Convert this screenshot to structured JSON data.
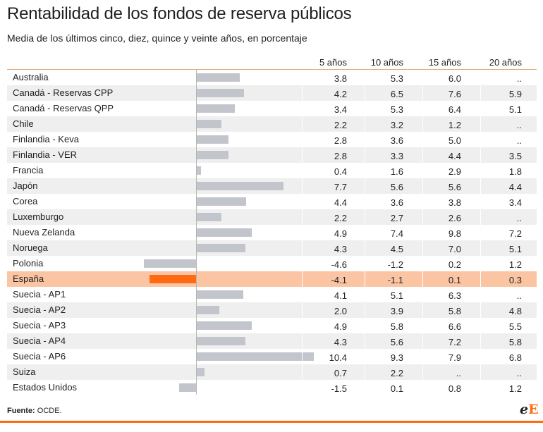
{
  "header": {
    "title": "Rentabilidad de los fondos de reserva públicos",
    "subtitle": "Media de los últimos cinco, diez, quince y veinte años, en porcentaje"
  },
  "footer": {
    "source_label": "Fuente:",
    "source_value": "OCDE.",
    "logo_e1": "e",
    "logo_e2": "E"
  },
  "colors": {
    "bar": "#c2c6cc",
    "highlight_bar": "#ff6a13",
    "highlight_row": "#fbc5a3",
    "rule": "#e0a86a"
  },
  "chart_data": {
    "type": "table",
    "columns": [
      "5 años",
      "10 años",
      "15 años",
      "20 años"
    ],
    "bar_series": "5 años",
    "highlight": "España",
    "rows": [
      {
        "name": "Australia",
        "values": [
          "3.8",
          "5.3",
          "6.0",
          ".."
        ]
      },
      {
        "name": "Canadá - Reservas CPP",
        "values": [
          "4.2",
          "6.5",
          "7.6",
          "5.9"
        ]
      },
      {
        "name": "Canadá - Reservas QPP",
        "values": [
          "3.4",
          "5.3",
          "6.4",
          "5.1"
        ]
      },
      {
        "name": "Chile",
        "values": [
          "2.2",
          "3.2",
          "1.2",
          ".."
        ]
      },
      {
        "name": "Finlandia - Keva",
        "values": [
          "2.8",
          "3.6",
          "5.0",
          ".."
        ]
      },
      {
        "name": "Finlandia - VER",
        "values": [
          "2.8",
          "3.3",
          "4.4",
          "3.5"
        ]
      },
      {
        "name": "Francia",
        "values": [
          "0.4",
          "1.6",
          "2.9",
          "1.8"
        ]
      },
      {
        "name": "Japón",
        "values": [
          "7.7",
          "5.6",
          "5.6",
          "4.4"
        ]
      },
      {
        "name": "Corea",
        "values": [
          "4.4",
          "3.6",
          "3.8",
          "3.4"
        ]
      },
      {
        "name": "Luxemburgo",
        "values": [
          "2.2",
          "2.7",
          "2.6",
          ".."
        ]
      },
      {
        "name": "Nueva Zelanda",
        "values": [
          "4.9",
          "7.4",
          "9.8",
          "7.2"
        ]
      },
      {
        "name": "Noruega",
        "values": [
          "4.3",
          "4.5",
          "7.0",
          "5.1"
        ]
      },
      {
        "name": "Polonia",
        "values": [
          "-4.6",
          "-1.2",
          "0.2",
          "1.2"
        ]
      },
      {
        "name": "España",
        "values": [
          "-4.1",
          "-1.1",
          "0.1",
          "0.3"
        ]
      },
      {
        "name": "Suecia - AP1",
        "values": [
          "4.1",
          "5.1",
          "6.3",
          ".."
        ]
      },
      {
        "name": "Suecia - AP2",
        "values": [
          "2.0",
          "3.9",
          "5.8",
          "4.8"
        ]
      },
      {
        "name": "Suecia - AP3",
        "values": [
          "4.9",
          "5.8",
          "6.6",
          "5.5"
        ]
      },
      {
        "name": "Suecia - AP4",
        "values": [
          "4.3",
          "5.6",
          "7.2",
          "5.8"
        ]
      },
      {
        "name": "Suecia - AP6",
        "values": [
          "10.4",
          "9.3",
          "7.9",
          "6.8"
        ]
      },
      {
        "name": "Suiza",
        "values": [
          "0.7",
          "2.2",
          "..",
          ".."
        ]
      },
      {
        "name": "Estados Unidos",
        "values": [
          "-1.5",
          "0.1",
          "0.8",
          "1.2"
        ]
      }
    ]
  }
}
